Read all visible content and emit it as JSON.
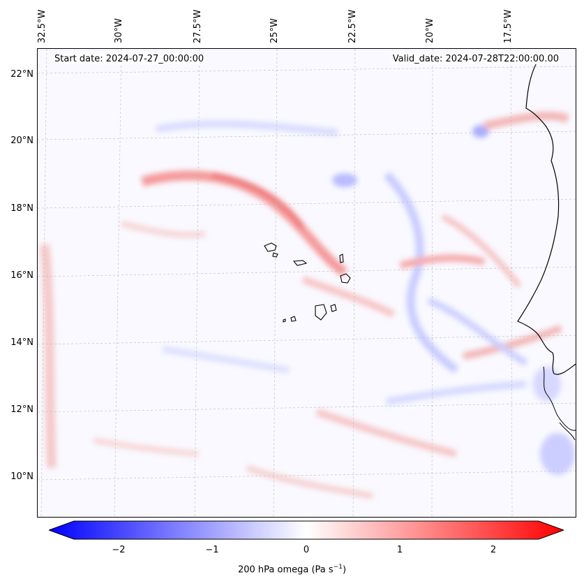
{
  "map": {
    "start_date": "Start date: 2024-07-27_00:00:00",
    "valid_date": "Valid_date: 2024-07-28T22:00:00.00",
    "lon_labels": [
      "32.5°W",
      "30°W",
      "27.5°W",
      "25°W",
      "22.5°W",
      "20°W",
      "17.5°W"
    ],
    "lat_labels": [
      "22°N",
      "20°N",
      "18°N",
      "16°N",
      "14°N",
      "12°N",
      "10°N"
    ],
    "lon_range": [
      -33.1,
      -15.5
    ],
    "lat_range": [
      8.9,
      22.8
    ]
  },
  "colorbar": {
    "label_prefix": "200 hPa omega (Pa s",
    "label_exp": "−1",
    "label_suffix": ")",
    "ticks": [
      "−2",
      "−1",
      "0",
      "1",
      "2"
    ],
    "tick_values": [
      -2,
      -1,
      0,
      1,
      2
    ],
    "range": [
      -2.5,
      2.5
    ],
    "negative_color": "#0000ff",
    "positive_color": "#ff0000"
  },
  "colors": {
    "coastline": "#000000",
    "grid": "#bbbbbb"
  }
}
